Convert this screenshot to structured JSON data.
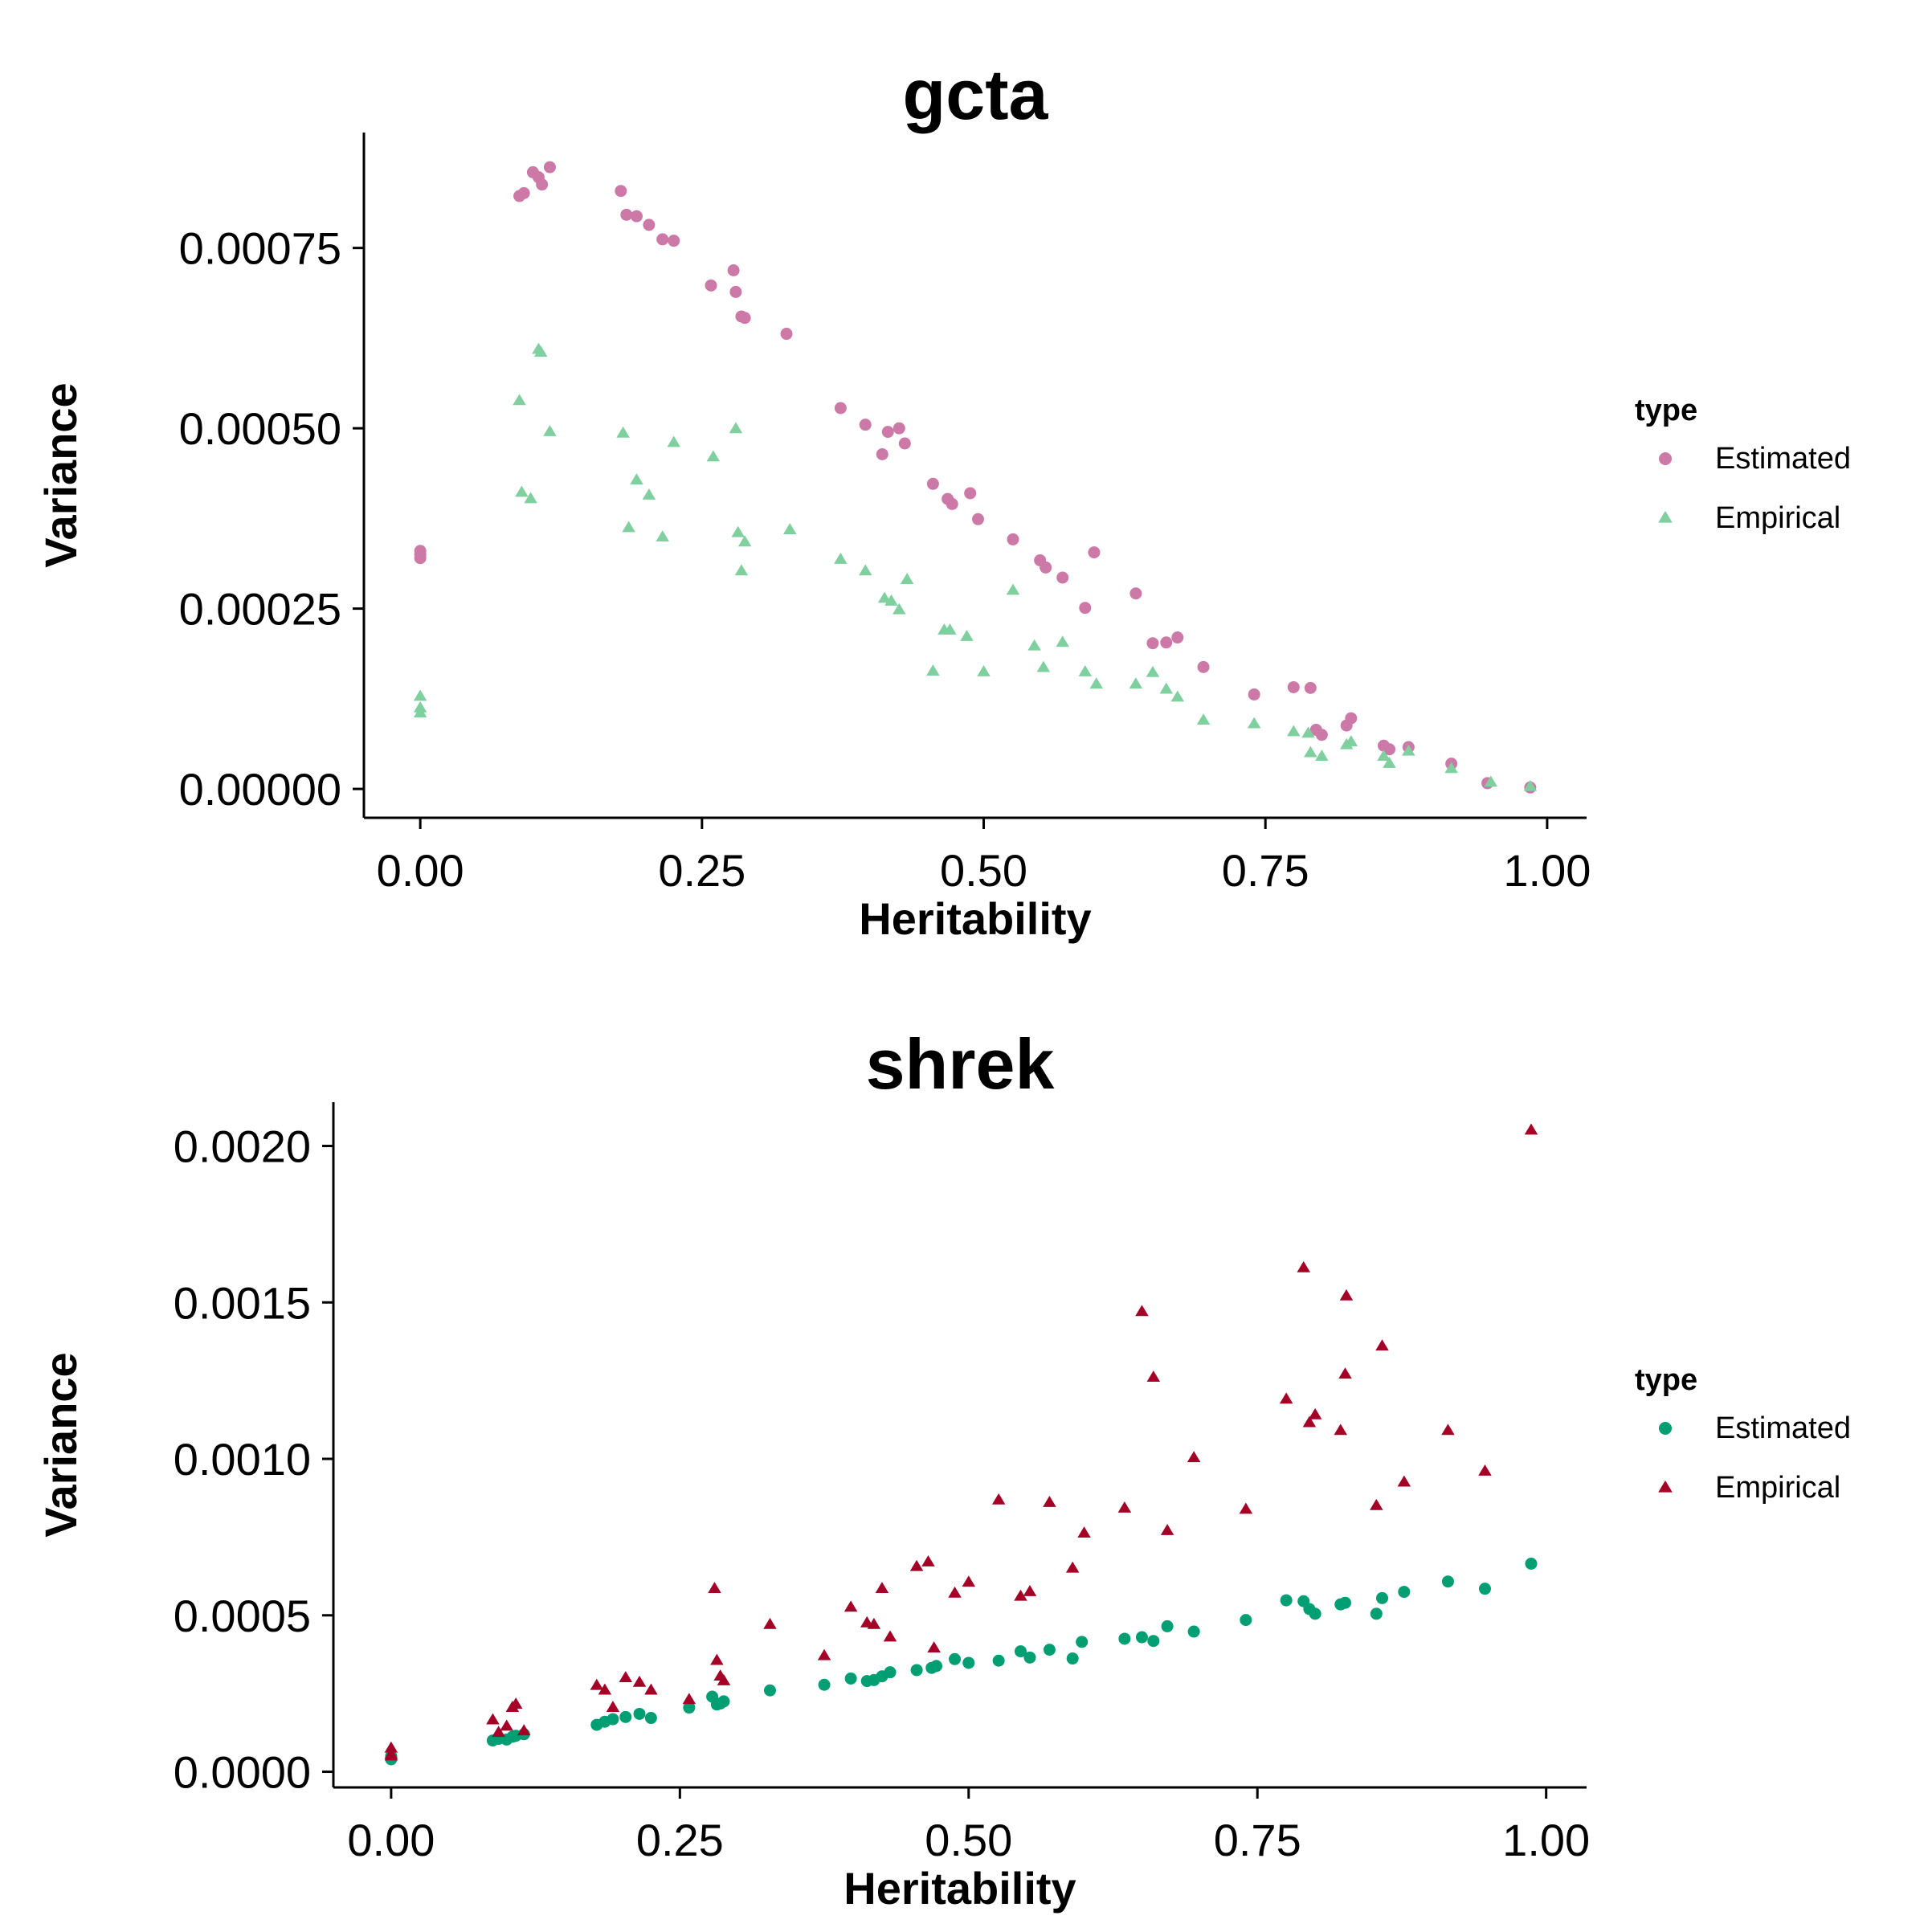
{
  "chart_data": [
    {
      "type": "scatter",
      "title": "gcta",
      "xlabel": "Heritability",
      "ylabel": "Variance",
      "xlim": [
        -0.05,
        1.035
      ],
      "ylim": [
        -4e-05,
        0.00091
      ],
      "xticks": [
        0,
        0.25,
        0.5,
        0.75,
        1
      ],
      "xtick_labels": [
        "0.00",
        "0.25",
        "0.50",
        "0.75",
        "1.00"
      ],
      "yticks": [
        0,
        0.00025,
        0.0005,
        0.00075
      ],
      "ytick_labels": [
        "0.00000",
        "0.00025",
        "0.00050",
        "0.00075"
      ],
      "grid": false,
      "legend": {
        "title": "type",
        "placement": "right",
        "entries": [
          {
            "label": "Estimated",
            "shape": "circle",
            "color": "#cc79a7"
          },
          {
            "label": "Empirical",
            "shape": "triangle",
            "color": "#7fcf9f"
          }
        ]
      },
      "series": [
        {
          "name": "Estimated",
          "shape": "circle",
          "color": "#cc79a7",
          "points": [
            [
              0.0,
              0.00033
            ],
            [
              0.0,
              0.000325
            ],
            [
              0.0,
              0.00032
            ],
            [
              0.088,
              0.000822
            ],
            [
              0.092,
              0.000826
            ],
            [
              0.1,
              0.000855
            ],
            [
              0.105,
              0.000848
            ],
            [
              0.108,
              0.000838
            ],
            [
              0.115,
              0.000862
            ],
            [
              0.178,
              0.000829
            ],
            [
              0.183,
              0.000796
            ],
            [
              0.192,
              0.000794
            ],
            [
              0.203,
              0.000782
            ],
            [
              0.215,
              0.000762
            ],
            [
              0.225,
              0.00076
            ],
            [
              0.258,
              0.000698
            ],
            [
              0.278,
              0.000719
            ],
            [
              0.28,
              0.000689
            ],
            [
              0.285,
              0.000655
            ],
            [
              0.288,
              0.000653
            ],
            [
              0.325,
              0.000631
            ],
            [
              0.373,
              0.000528
            ],
            [
              0.395,
              0.000505
            ],
            [
              0.41,
              0.000464
            ],
            [
              0.415,
              0.000495
            ],
            [
              0.425,
              0.0005
            ],
            [
              0.43,
              0.000479
            ],
            [
              0.455,
              0.000423
            ],
            [
              0.468,
              0.000402
            ],
            [
              0.472,
              0.000395
            ],
            [
              0.488,
              0.00041
            ],
            [
              0.495,
              0.000374
            ],
            [
              0.526,
              0.000346
            ],
            [
              0.55,
              0.000317
            ],
            [
              0.555,
              0.000307
            ],
            [
              0.57,
              0.000293
            ],
            [
              0.59,
              0.000251
            ],
            [
              0.598,
              0.000328
            ],
            [
              0.635,
              0.000271
            ],
            [
              0.65,
              0.000202
            ],
            [
              0.662,
              0.000203
            ],
            [
              0.672,
              0.00021
            ],
            [
              0.695,
              0.000169
            ],
            [
              0.74,
              0.000131
            ],
            [
              0.775,
              0.000141
            ],
            [
              0.79,
              0.00014
            ],
            [
              0.795,
              8.2e-05
            ],
            [
              0.8,
              7.5e-05
            ],
            [
              0.822,
              8.8e-05
            ],
            [
              0.826,
              9.8e-05
            ],
            [
              0.855,
              6e-05
            ],
            [
              0.86,
              5.5e-05
            ],
            [
              0.877,
              5.8e-05
            ],
            [
              0.915,
              3.5e-05
            ],
            [
              0.947,
              8e-06
            ],
            [
              0.985,
              2e-06
            ]
          ]
        },
        {
          "name": "Empirical",
          "shape": "triangle",
          "color": "#7fcf9f",
          "points": [
            [
              0.0,
              0.000128
            ],
            [
              0.0,
              0.000112
            ],
            [
              0.0,
              0.000105
            ],
            [
              0.088,
              0.000538
            ],
            [
              0.09,
              0.000411
            ],
            [
              0.098,
              0.000402
            ],
            [
              0.105,
              0.000609
            ],
            [
              0.107,
              0.000605
            ],
            [
              0.115,
              0.000495
            ],
            [
              0.18,
              0.000493
            ],
            [
              0.185,
              0.000362
            ],
            [
              0.192,
              0.000428
            ],
            [
              0.203,
              0.000407
            ],
            [
              0.215,
              0.000349
            ],
            [
              0.225,
              0.00048
            ],
            [
              0.26,
              0.00046
            ],
            [
              0.28,
              0.000499
            ],
            [
              0.282,
              0.000355
            ],
            [
              0.285,
              0.000302
            ],
            [
              0.288,
              0.000342
            ],
            [
              0.328,
              0.000359
            ],
            [
              0.373,
              0.000318
            ],
            [
              0.395,
              0.000302
            ],
            [
              0.412,
              0.000264
            ],
            [
              0.418,
              0.00026
            ],
            [
              0.425,
              0.000248
            ],
            [
              0.432,
              0.00029
            ],
            [
              0.455,
              0.000163
            ],
            [
              0.465,
              0.00022
            ],
            [
              0.47,
              0.00022
            ],
            [
              0.485,
              0.000211
            ],
            [
              0.5,
              0.000162
            ],
            [
              0.526,
              0.000275
            ],
            [
              0.545,
              0.000198
            ],
            [
              0.553,
              0.000168
            ],
            [
              0.57,
              0.000203
            ],
            [
              0.59,
              0.000162
            ],
            [
              0.6,
              0.000145
            ],
            [
              0.635,
              0.000145
            ],
            [
              0.65,
              0.000161
            ],
            [
              0.662,
              0.000138
            ],
            [
              0.672,
              0.000127
            ],
            [
              0.695,
              9.5e-05
            ],
            [
              0.74,
              9e-05
            ],
            [
              0.775,
              7.9e-05
            ],
            [
              0.788,
              7.7e-05
            ],
            [
              0.79,
              5e-05
            ],
            [
              0.8,
              4.5e-05
            ],
            [
              0.822,
              6.1e-05
            ],
            [
              0.826,
              6.5e-05
            ],
            [
              0.855,
              4.5e-05
            ],
            [
              0.86,
              3.5e-05
            ],
            [
              0.877,
              5.2e-05
            ],
            [
              0.915,
              2.8e-05
            ],
            [
              0.95,
              9e-06
            ],
            [
              0.985,
              3e-06
            ]
          ]
        }
      ]
    },
    {
      "type": "scatter",
      "title": "shrek",
      "xlabel": "Heritability",
      "ylabel": "Variance",
      "xlim": [
        -0.05,
        1.035
      ],
      "ylim": [
        -5e-05,
        0.00214
      ],
      "xticks": [
        0,
        0.25,
        0.5,
        0.75,
        1
      ],
      "xtick_labels": [
        "0.00",
        "0.25",
        "0.50",
        "0.75",
        "1.00"
      ],
      "yticks": [
        0,
        0.0005,
        0.001,
        0.0015,
        0.002
      ],
      "ytick_labels": [
        "0.0000",
        "0.0005",
        "0.0010",
        "0.0015",
        "0.0020"
      ],
      "grid": false,
      "legend": {
        "title": "type",
        "placement": "right",
        "entries": [
          {
            "label": "Estimated",
            "shape": "circle",
            "color": "#009e73"
          },
          {
            "label": "Empirical",
            "shape": "triangle",
            "color": "#a50026"
          }
        ]
      },
      "series": [
        {
          "name": "Estimated",
          "shape": "circle",
          "color": "#009e73",
          "points": [
            [
              0.0,
              5e-05
            ],
            [
              0.0,
              4.5e-05
            ],
            [
              0.0,
              4e-05
            ],
            [
              0.088,
              0.0001
            ],
            [
              0.093,
              0.000105
            ],
            [
              0.1,
              0.000103
            ],
            [
              0.105,
              0.000112
            ],
            [
              0.108,
              0.000115
            ],
            [
              0.115,
              0.00012
            ],
            [
              0.178,
              0.00015
            ],
            [
              0.185,
              0.00016
            ],
            [
              0.192,
              0.000168
            ],
            [
              0.203,
              0.000175
            ],
            [
              0.215,
              0.000185
            ],
            [
              0.225,
              0.000172
            ],
            [
              0.258,
              0.000205
            ],
            [
              0.278,
              0.00024
            ],
            [
              0.282,
              0.000215
            ],
            [
              0.285,
              0.000218
            ],
            [
              0.288,
              0.000225
            ],
            [
              0.328,
              0.00026
            ],
            [
              0.375,
              0.000278
            ],
            [
              0.398,
              0.000298
            ],
            [
              0.412,
              0.00029
            ],
            [
              0.418,
              0.000293
            ],
            [
              0.425,
              0.000305
            ],
            [
              0.432,
              0.000318
            ],
            [
              0.455,
              0.000325
            ],
            [
              0.468,
              0.000332
            ],
            [
              0.472,
              0.000338
            ],
            [
              0.488,
              0.00036
            ],
            [
              0.5,
              0.000348
            ],
            [
              0.526,
              0.000355
            ],
            [
              0.545,
              0.000385
            ],
            [
              0.553,
              0.000365
            ],
            [
              0.57,
              0.00039
            ],
            [
              0.59,
              0.000362
            ],
            [
              0.598,
              0.000415
            ],
            [
              0.635,
              0.000425
            ],
            [
              0.65,
              0.00043
            ],
            [
              0.66,
              0.000418
            ],
            [
              0.672,
              0.000465
            ],
            [
              0.695,
              0.000448
            ],
            [
              0.74,
              0.000485
            ],
            [
              0.775,
              0.000548
            ],
            [
              0.79,
              0.000545
            ],
            [
              0.795,
              0.00052
            ],
            [
              0.8,
              0.000505
            ],
            [
              0.822,
              0.000535
            ],
            [
              0.826,
              0.00054
            ],
            [
              0.853,
              0.000505
            ],
            [
              0.858,
              0.000555
            ],
            [
              0.877,
              0.000575
            ],
            [
              0.915,
              0.000608
            ],
            [
              0.947,
              0.000585
            ],
            [
              0.987,
              0.000665
            ]
          ]
        },
        {
          "name": "Empirical",
          "shape": "triangle",
          "color": "#a50026",
          "points": [
            [
              0.0,
              7.5e-05
            ],
            [
              0.0,
              5.5e-05
            ],
            [
              0.0,
              5e-05
            ],
            [
              0.088,
              0.000165
            ],
            [
              0.093,
              0.000125
            ],
            [
              0.1,
              0.000145
            ],
            [
              0.105,
              0.000205
            ],
            [
              0.108,
              0.000215
            ],
            [
              0.115,
              0.00013
            ],
            [
              0.178,
              0.000275
            ],
            [
              0.185,
              0.00026
            ],
            [
              0.192,
              0.000205
            ],
            [
              0.203,
              0.0003
            ],
            [
              0.215,
              0.000285
            ],
            [
              0.225,
              0.00026
            ],
            [
              0.258,
              0.00023
            ],
            [
              0.28,
              0.000585
            ],
            [
              0.282,
              0.000355
            ],
            [
              0.285,
              0.000305
            ],
            [
              0.288,
              0.00029
            ],
            [
              0.328,
              0.00047
            ],
            [
              0.375,
              0.00037
            ],
            [
              0.398,
              0.000525
            ],
            [
              0.412,
              0.000475
            ],
            [
              0.418,
              0.00047
            ],
            [
              0.425,
              0.000585
            ],
            [
              0.432,
              0.00043
            ],
            [
              0.455,
              0.000655
            ],
            [
              0.465,
              0.00067
            ],
            [
              0.47,
              0.000395
            ],
            [
              0.488,
              0.00057
            ],
            [
              0.5,
              0.000605
            ],
            [
              0.526,
              0.000868
            ],
            [
              0.545,
              0.00056
            ],
            [
              0.553,
              0.000575
            ],
            [
              0.57,
              0.00086
            ],
            [
              0.59,
              0.00065
            ],
            [
              0.6,
              0.000762
            ],
            [
              0.635,
              0.000842
            ],
            [
              0.65,
              0.00147
            ],
            [
              0.66,
              0.00126
            ],
            [
              0.672,
              0.00077
            ],
            [
              0.695,
              0.001003
            ],
            [
              0.74,
              0.000838
            ],
            [
              0.775,
              0.00119
            ],
            [
              0.79,
              0.00161
            ],
            [
              0.795,
              0.001115
            ],
            [
              0.8,
              0.00114
            ],
            [
              0.822,
              0.00109
            ],
            [
              0.826,
              0.00127
            ],
            [
              0.827,
              0.00152
            ],
            [
              0.853,
              0.00085
            ],
            [
              0.858,
              0.00136
            ],
            [
              0.877,
              0.000925
            ],
            [
              0.915,
              0.00109
            ],
            [
              0.947,
              0.00096
            ],
            [
              0.987,
              0.00205
            ]
          ]
        }
      ]
    }
  ]
}
